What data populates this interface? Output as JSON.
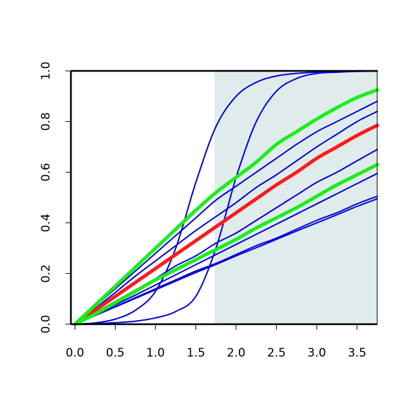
{
  "chart_data": {
    "type": "line",
    "title": "",
    "xlabel": "",
    "ylabel": "",
    "xlim": [
      -0.05,
      3.75
    ],
    "ylim": [
      0.0,
      1.0
    ],
    "grid": false,
    "x_ticks": [
      "0.0",
      "0.5",
      "1.0",
      "1.5",
      "2.0",
      "2.5",
      "3.0",
      "3.5"
    ],
    "y_ticks": [
      "0.0",
      "0.2",
      "0.4",
      "0.6",
      "0.8",
      "1.0"
    ],
    "shaded_region": {
      "x_from": 1.73,
      "x_to": 3.75,
      "color": "#e0ecec"
    },
    "colors": {
      "blue": "#0000dd",
      "red": "#ff1a1a",
      "green": "#1aee1a"
    },
    "series": [
      {
        "color": "blue",
        "width": "thin",
        "x": [
          0,
          0.25,
          0.5,
          0.75,
          1.0,
          1.25,
          1.5,
          1.75,
          2.0,
          2.25,
          2.5,
          2.75,
          3.0,
          3.25,
          3.5,
          3.75
        ],
        "y": [
          0,
          0.005,
          0.02,
          0.055,
          0.13,
          0.3,
          0.56,
          0.78,
          0.9,
          0.955,
          0.98,
          0.99,
          0.995,
          0.998,
          0.999,
          1.0
        ]
      },
      {
        "color": "blue",
        "width": "thin",
        "x": [
          0,
          0.25,
          0.5,
          0.75,
          1.0,
          1.25,
          1.5,
          1.75,
          2.0,
          2.25,
          2.5,
          2.75,
          3.0,
          3.25,
          3.5,
          3.75
        ],
        "y": [
          0,
          0.002,
          0.006,
          0.012,
          0.025,
          0.05,
          0.11,
          0.3,
          0.58,
          0.8,
          0.92,
          0.97,
          0.99,
          0.995,
          0.998,
          0.999
        ]
      },
      {
        "color": "blue",
        "width": "thin",
        "x": [
          0,
          0.25,
          0.5,
          0.75,
          1.0,
          1.25,
          1.5,
          1.75,
          2.0,
          2.25,
          2.5,
          2.75,
          3.0,
          3.25,
          3.5,
          3.75
        ],
        "y": [
          0,
          0.07,
          0.14,
          0.21,
          0.28,
          0.35,
          0.42,
          0.49,
          0.545,
          0.6,
          0.655,
          0.71,
          0.76,
          0.8,
          0.84,
          0.88
        ]
      },
      {
        "color": "blue",
        "width": "thin",
        "x": [
          0,
          0.25,
          0.5,
          0.75,
          1.0,
          1.25,
          1.5,
          1.75,
          2.0,
          2.25,
          2.5,
          2.75,
          3.0,
          3.25,
          3.5,
          3.75
        ],
        "y": [
          0,
          0.062,
          0.125,
          0.19,
          0.25,
          0.31,
          0.37,
          0.425,
          0.48,
          0.54,
          0.59,
          0.645,
          0.7,
          0.75,
          0.8,
          0.84
        ]
      },
      {
        "color": "blue",
        "width": "thin",
        "x": [
          0,
          0.25,
          0.5,
          0.75,
          1.0,
          1.25,
          1.5,
          1.75,
          2.0,
          2.25,
          2.5,
          2.75,
          3.0,
          3.25,
          3.5,
          3.75
        ],
        "y": [
          0,
          0.045,
          0.09,
          0.135,
          0.18,
          0.23,
          0.27,
          0.32,
          0.36,
          0.41,
          0.46,
          0.51,
          0.56,
          0.6,
          0.645,
          0.69
        ]
      },
      {
        "color": "blue",
        "width": "thin",
        "x": [
          0,
          0.25,
          0.5,
          0.75,
          1.0,
          1.25,
          1.5,
          1.75,
          2.0,
          2.25,
          2.5,
          2.75,
          3.0,
          3.25,
          3.5,
          3.75
        ],
        "y": [
          0,
          0.037,
          0.077,
          0.115,
          0.155,
          0.195,
          0.235,
          0.275,
          0.315,
          0.355,
          0.395,
          0.435,
          0.475,
          0.515,
          0.555,
          0.595
        ]
      },
      {
        "color": "blue",
        "width": "thin",
        "x": [
          0,
          0.25,
          0.5,
          0.75,
          1.0,
          1.25,
          1.5,
          1.75,
          2.0,
          2.25,
          2.5,
          2.75,
          3.0,
          3.25,
          3.5,
          3.75
        ],
        "y": [
          0,
          0.035,
          0.07,
          0.105,
          0.14,
          0.175,
          0.21,
          0.24,
          0.275,
          0.31,
          0.34,
          0.375,
          0.41,
          0.44,
          0.475,
          0.505
        ]
      },
      {
        "color": "blue",
        "width": "thin",
        "x": [
          0,
          0.25,
          0.5,
          0.75,
          1.0,
          1.25,
          1.5,
          1.75,
          2.0,
          2.25,
          2.5,
          2.75,
          3.0,
          3.25,
          3.5,
          3.75
        ],
        "y": [
          0,
          0.034,
          0.068,
          0.102,
          0.136,
          0.17,
          0.204,
          0.236,
          0.27,
          0.302,
          0.335,
          0.368,
          0.4,
          0.432,
          0.465,
          0.495
        ]
      },
      {
        "color": "red",
        "width": "thick",
        "x": [
          0,
          0.25,
          0.5,
          0.75,
          1.0,
          1.25,
          1.5,
          1.75,
          2.0,
          2.25,
          2.5,
          2.75,
          3.0,
          3.25,
          3.5,
          3.75
        ],
        "y": [
          0,
          0.055,
          0.11,
          0.165,
          0.22,
          0.275,
          0.33,
          0.385,
          0.44,
          0.495,
          0.55,
          0.6,
          0.655,
          0.7,
          0.745,
          0.785
        ]
      },
      {
        "color": "green",
        "width": "thick",
        "x": [
          0,
          0.25,
          0.5,
          0.75,
          1.0,
          1.25,
          1.5,
          1.75,
          2.0,
          2.25,
          2.5,
          2.75,
          3.0,
          3.25,
          3.5,
          3.75
        ],
        "y": [
          0,
          0.075,
          0.15,
          0.225,
          0.3,
          0.375,
          0.45,
          0.52,
          0.58,
          0.64,
          0.71,
          0.76,
          0.81,
          0.855,
          0.895,
          0.925
        ]
      },
      {
        "color": "green",
        "width": "thick",
        "x": [
          0,
          0.25,
          0.5,
          0.75,
          1.0,
          1.25,
          1.5,
          1.75,
          2.0,
          2.25,
          2.5,
          2.75,
          3.0,
          3.25,
          3.5,
          3.75
        ],
        "y": [
          0,
          0.04,
          0.085,
          0.13,
          0.175,
          0.215,
          0.255,
          0.295,
          0.335,
          0.38,
          0.42,
          0.46,
          0.505,
          0.55,
          0.59,
          0.63
        ]
      }
    ]
  }
}
